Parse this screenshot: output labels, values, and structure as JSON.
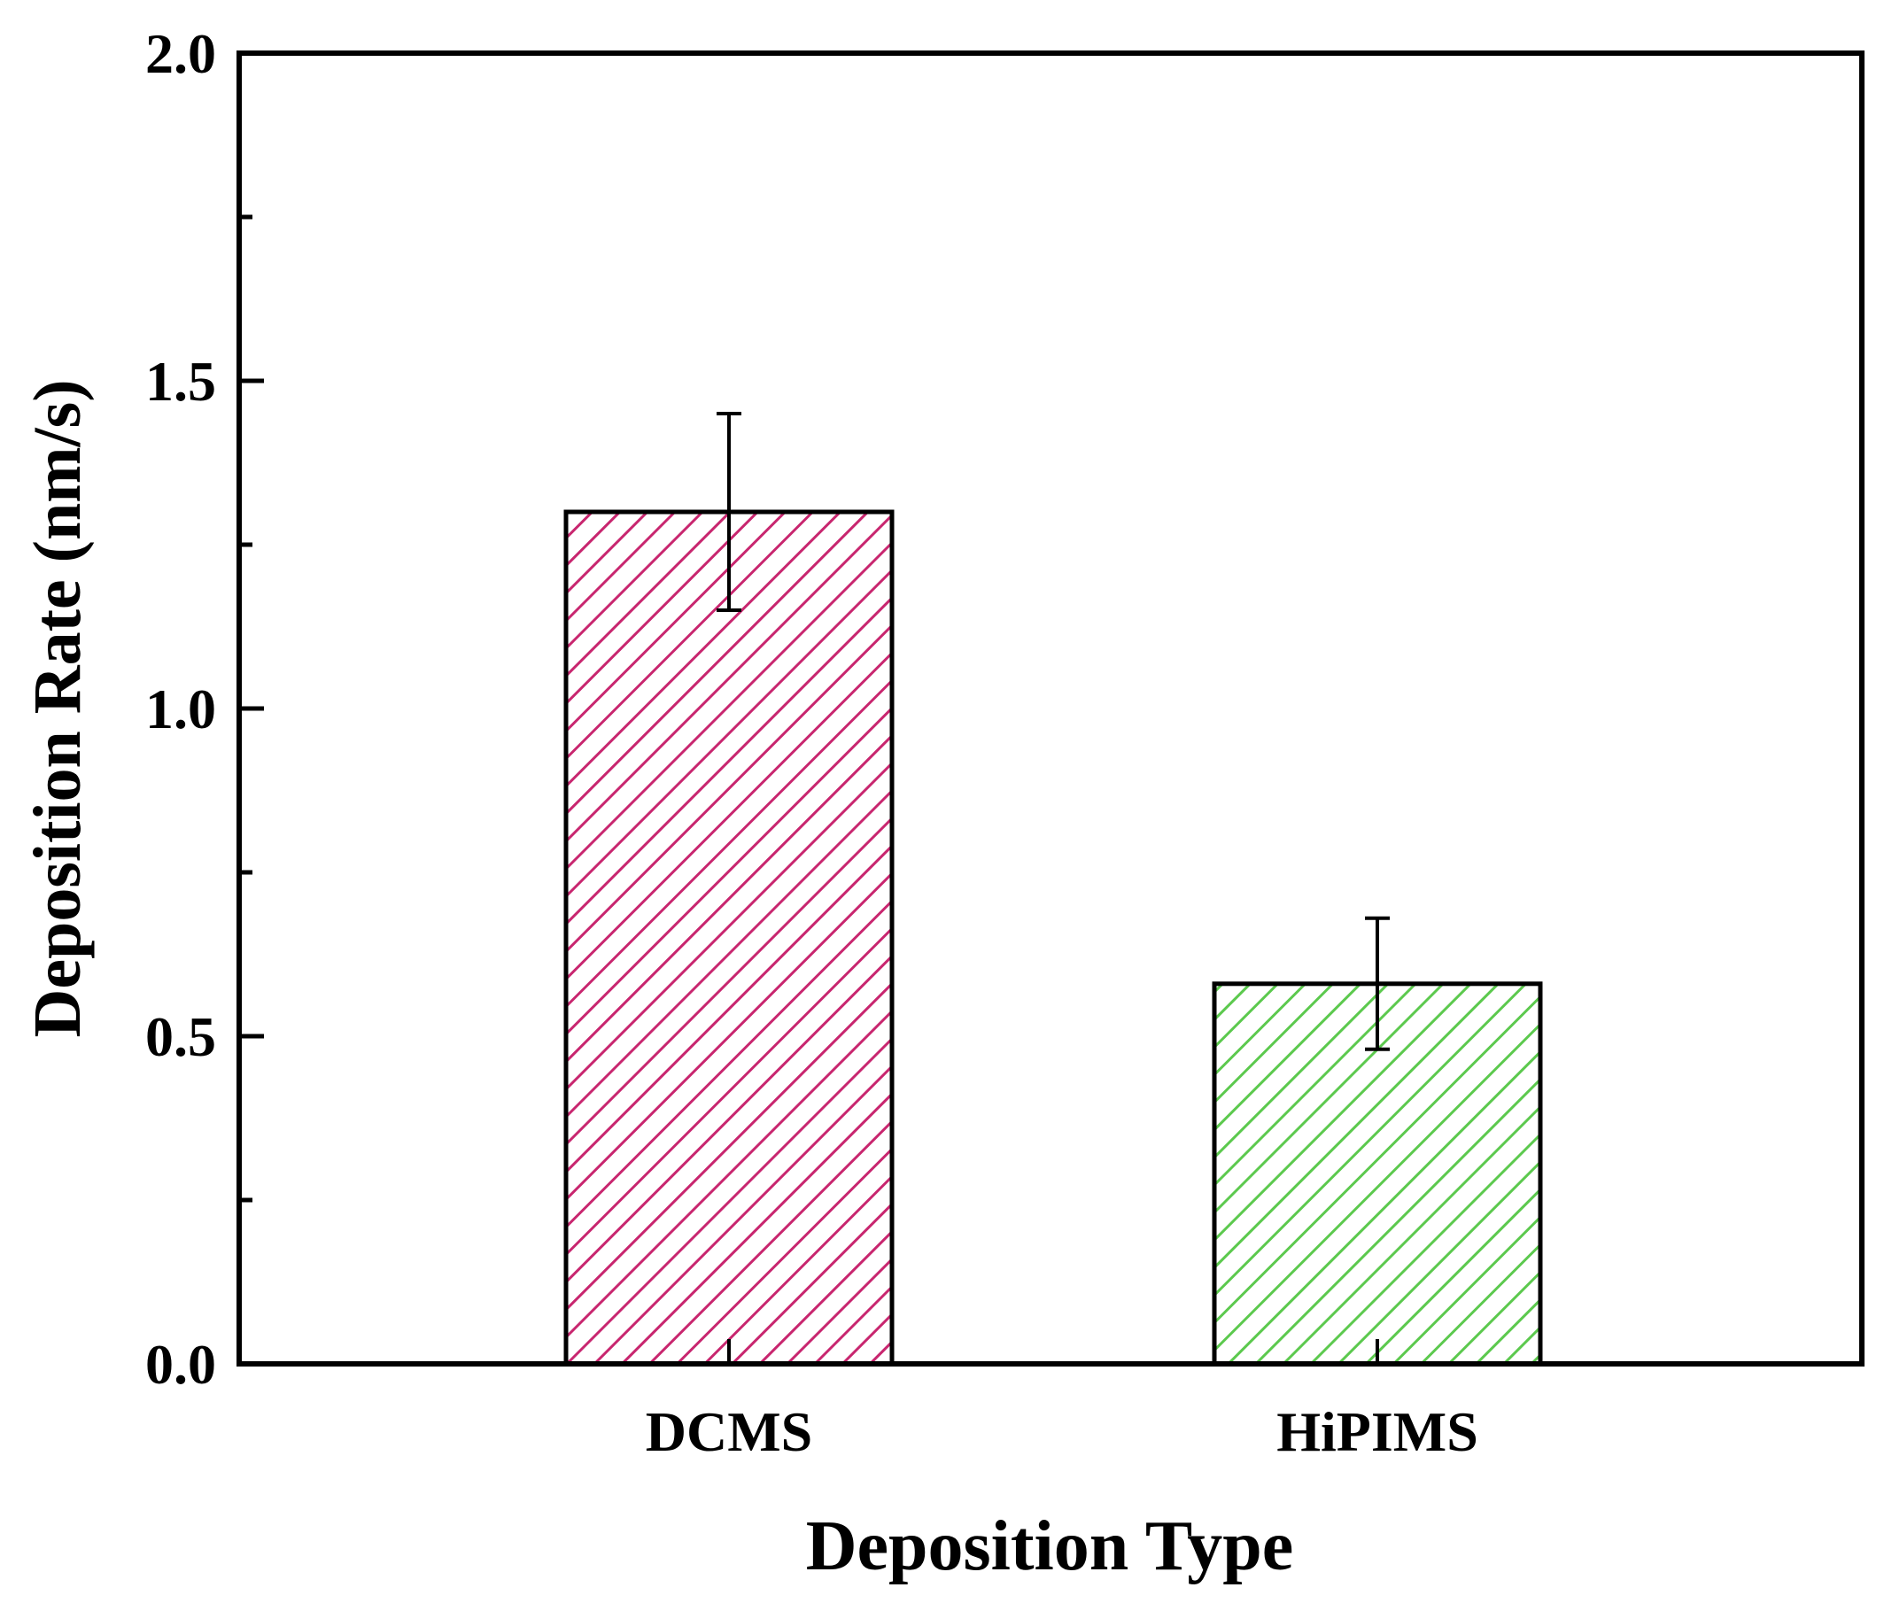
{
  "chart_data": {
    "type": "bar",
    "title": "",
    "xlabel": "Deposition Type",
    "ylabel": "Deposition Rate (nm/s)",
    "categories": [
      "DCMS",
      "HiPIMS"
    ],
    "values": [
      1.3,
      0.58
    ],
    "error": [
      0.15,
      0.1
    ],
    "ylim": [
      0.0,
      2.0
    ],
    "yticks": [
      0.0,
      0.5,
      1.0,
      1.5,
      2.0
    ],
    "ytick_labels": [
      "0.0",
      "0.5",
      "1.0",
      "1.5",
      "2.0"
    ],
    "minor_yticks": [
      0.25,
      0.75,
      1.25,
      1.75
    ],
    "bar_colors": [
      "#c8266f",
      "#5cc94e"
    ],
    "bar_fill": "diagonal-hatch",
    "grid": false,
    "legend": "none"
  }
}
